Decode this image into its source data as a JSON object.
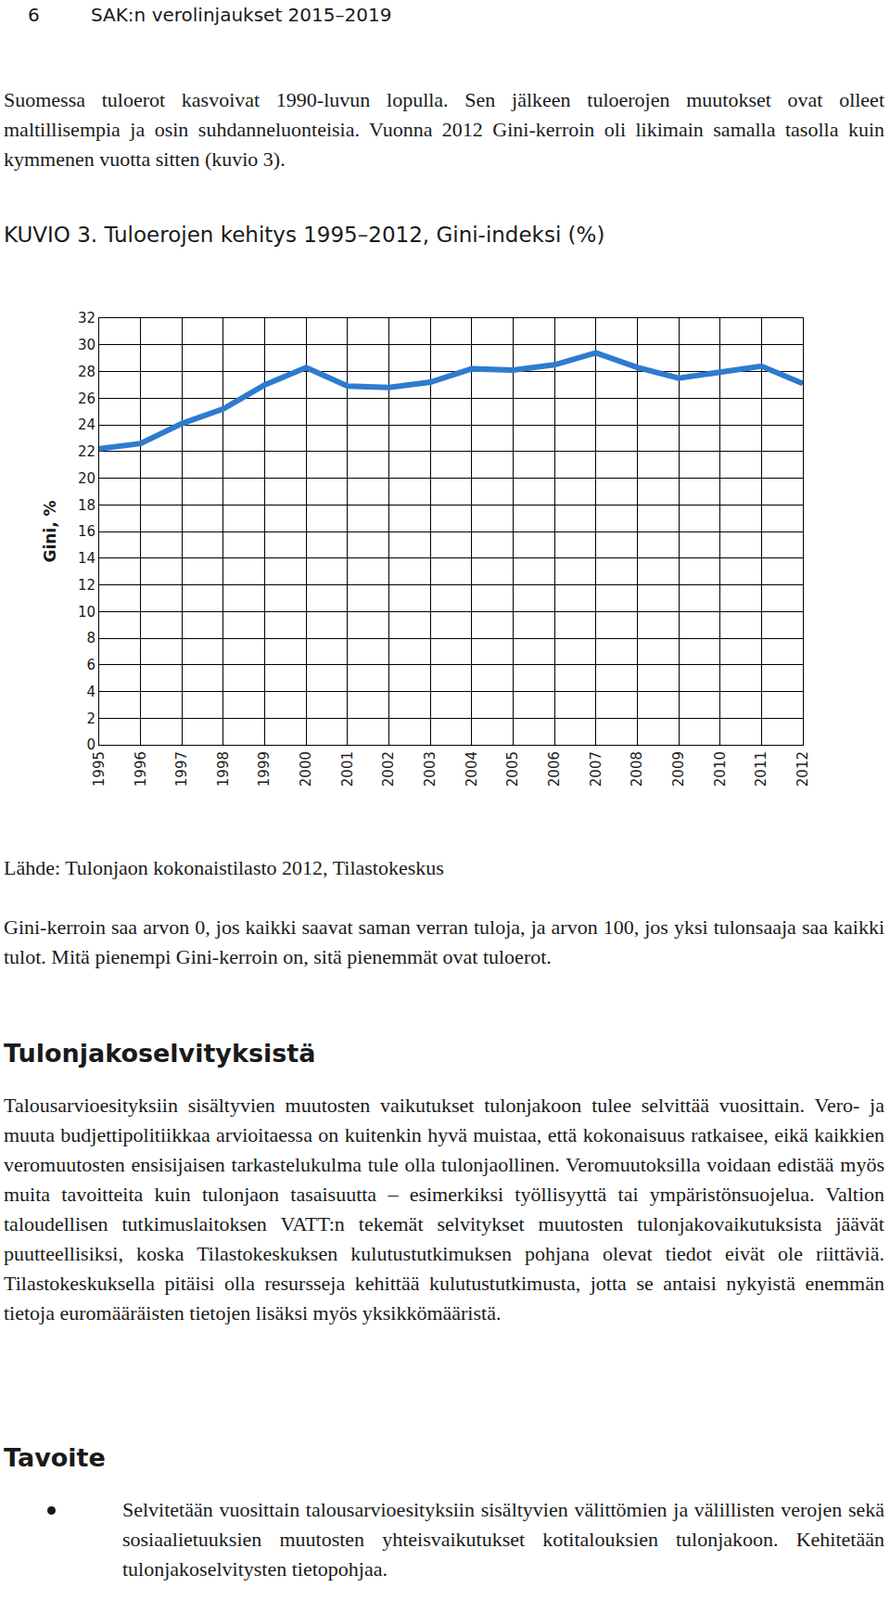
{
  "document": {
    "header": {
      "page_number": "6",
      "title": "SAK:n verolinjaukset 2015–2019"
    },
    "intro": "Suomessa tuloerot kasvoivat 1990-luvun lopulla. Sen jälkeen tuloerojen muutokset ovat olleet maltillisempia ja osin suhdanneluonteisia. Vuonna 2012 Gini-kerroin oli likimain samalla tasolla kuin kymmenen vuotta sitten (kuvio 3).",
    "source": "Lähde: Tulonjaon kokonaistilasto 2012, Tilastokeskus",
    "note": "Gini-kerroin saa arvon 0, jos kaikki saavat saman verran tuloja, ja arvon 100, jos yksi tulonsaaja saa kaikki tulot. Mitä pienempi Gini-kerroin on, sitä pienemmät ovat tuloerot.",
    "sections": [
      {
        "heading": "Tulonjakoselvityksistä",
        "paragraphs": [
          "Talousarvioesityksiin sisältyvien muutosten vaikutukset tulonjakoon tulee selvittää vuosittain. Vero- ja muuta budjettipolitiikkaa arvioitaessa on kuitenkin hyvä muistaa, että kokonaisuus ratkaisee, eikä kaikkien veromuutosten ensisijaisen tarkastelukulma tule olla tulonjaollinen. Veromuutoksilla voidaan edistää myös muita tavoitteita kuin tulonjaon tasaisuutta – esimerkiksi työllisyyttä tai ympäristönsuojelua. Valtion taloudellisen tutkimuslaitoksen VATT:n tekemät selvitykset muutosten tulonjakovaikutuksista jäävät puutteellisiksi, koska Tilastokeskuksen kulutustutkimuksen pohjana olevat tiedot eivät ole riittäviä. Tilastokeskuksella pitäisi olla resursseja kehittää kulutustutkimusta, jotta se antaisi nykyistä enemmän tietoja euromääräisten tietojen lisäksi myös yksikkömääristä."
        ]
      },
      {
        "heading": "Tavoite",
        "bullets": [
          "Selvitetään vuosittain talousarvioesityksiin sisältyvien välittömien ja välillisten verojen sekä sosiaalietuuksien muutosten yhteisvaikutukset kotitalouksien tulonjakoon. Kehitetään tulonjakoselvitysten tietopohjaa."
        ]
      }
    ]
  },
  "chart_data": {
    "type": "line",
    "title": "KUVIO 3. Tuloerojen kehitys 1995–2012, Gini-indeksi (%)",
    "y_label": "Gini, %",
    "categories": [
      "1995",
      "1996",
      "1997",
      "1998",
      "1999",
      "2000",
      "2001",
      "2002",
      "2003",
      "2004",
      "2005",
      "2006",
      "2007",
      "2008",
      "2009",
      "2010",
      "2011",
      "2012"
    ],
    "values": [
      22.2,
      22.6,
      24.1,
      25.2,
      27.0,
      28.3,
      26.9,
      26.8,
      27.2,
      28.2,
      28.1,
      28.5,
      29.4,
      28.3,
      27.5,
      28.0,
      28.4,
      27.1
    ],
    "color": "#2e7bcf",
    "ylim": [
      0,
      32
    ],
    "yticks": [
      0,
      2,
      4,
      6,
      8,
      10,
      12,
      14,
      16,
      18,
      20,
      22,
      24,
      26,
      28,
      30,
      32
    ],
    "grid": true
  }
}
